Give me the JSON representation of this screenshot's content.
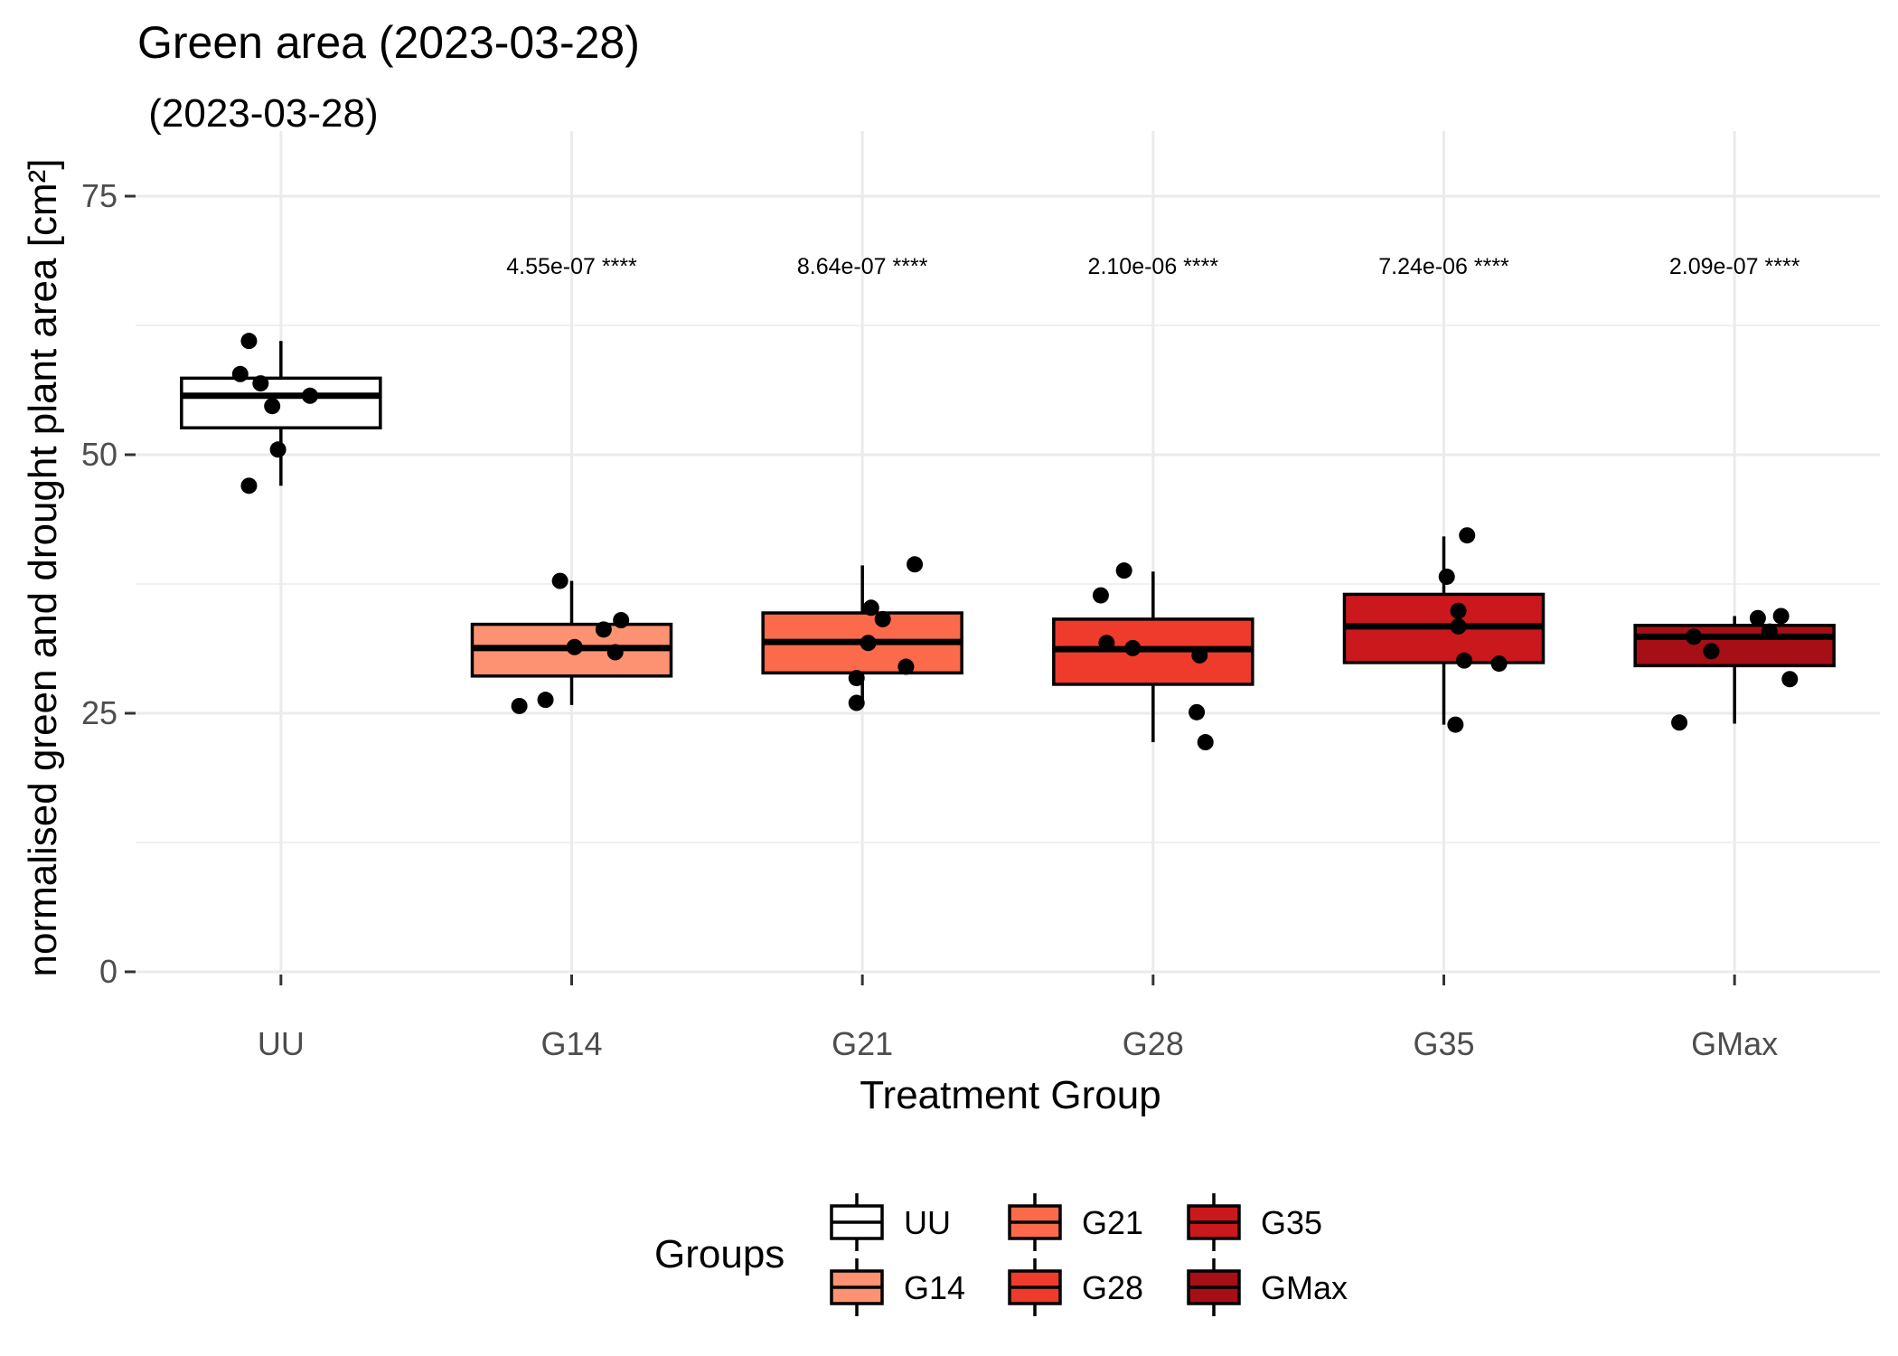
{
  "chart_data": {
    "type": "box",
    "title": "Green area (2023-03-28)",
    "subtitle": " (2023-03-28)",
    "xlabel": "Treatment Group",
    "ylabel": "normalised green and drought plant area [cm²]",
    "ylim": [
      0,
      78
    ],
    "yticks": [
      0,
      25,
      50,
      75
    ],
    "grid": true,
    "categories": [
      "UU",
      "G14",
      "G21",
      "G28",
      "G35",
      "GMax"
    ],
    "boxes": [
      {
        "name": "UU",
        "color": "#ffffff",
        "whisker_low": 47.0,
        "q1": 52.6,
        "median": 55.7,
        "q3": 57.4,
        "whisker_high": 61.0,
        "points": [
          61.0,
          57.8,
          56.9,
          55.7,
          54.7,
          50.5,
          47.0
        ],
        "jitter": [
          -0.11,
          -0.14,
          -0.07,
          0.1,
          -0.03,
          -0.01,
          -0.11
        ],
        "annotation": ""
      },
      {
        "name": "G14",
        "color": "#fc9272",
        "whisker_low": 25.8,
        "q1": 28.6,
        "median": 31.3,
        "q3": 33.6,
        "whisker_high": 37.8,
        "points": [
          37.8,
          34.0,
          33.1,
          31.4,
          30.9,
          26.3,
          25.7
        ],
        "jitter": [
          -0.04,
          0.17,
          0.11,
          0.01,
          0.15,
          -0.09,
          -0.18
        ],
        "annotation": "4.55e-07 ****"
      },
      {
        "name": "G21",
        "color": "#fb6a4a",
        "whisker_low": 26.0,
        "q1": 28.9,
        "median": 31.9,
        "q3": 34.7,
        "whisker_high": 39.3,
        "points": [
          39.4,
          35.2,
          34.1,
          31.8,
          29.5,
          28.4,
          26.0
        ],
        "jitter": [
          0.18,
          0.03,
          0.07,
          0.02,
          0.15,
          -0.02,
          -0.02
        ],
        "annotation": "8.64e-07 ****"
      },
      {
        "name": "G28",
        "color": "#ef3b2c",
        "whisker_low": 22.2,
        "q1": 27.8,
        "median": 31.2,
        "q3": 34.1,
        "whisker_high": 38.7,
        "points": [
          38.8,
          36.4,
          31.8,
          31.3,
          30.6,
          25.1,
          22.2
        ],
        "jitter": [
          -0.1,
          -0.18,
          -0.16,
          -0.07,
          0.16,
          0.15,
          0.18
        ],
        "annotation": "2.10e-06 ****"
      },
      {
        "name": "G35",
        "color": "#cb181d",
        "whisker_low": 23.9,
        "q1": 29.9,
        "median": 33.4,
        "q3": 36.5,
        "whisker_high": 42.1,
        "points": [
          42.2,
          38.2,
          34.9,
          33.4,
          30.1,
          29.8,
          23.9
        ],
        "jitter": [
          0.08,
          0.01,
          0.05,
          0.05,
          0.07,
          0.19,
          0.04
        ],
        "annotation": "7.24e-06 ****"
      },
      {
        "name": "GMax",
        "color": "#a50f15",
        "whisker_low": 24.0,
        "q1": 29.6,
        "median": 32.4,
        "q3": 33.5,
        "whisker_high": 34.4,
        "points": [
          34.4,
          34.2,
          32.9,
          32.4,
          31.0,
          28.3,
          24.1
        ],
        "jitter": [
          0.16,
          0.08,
          0.12,
          -0.14,
          -0.08,
          0.19,
          -0.19
        ],
        "annotation": "2.09e-07 ****"
      }
    ],
    "legend": {
      "title": "Groups",
      "position": "bottom",
      "columns": [
        [
          "UU",
          "G14"
        ],
        [
          "G21",
          "G28"
        ],
        [
          "G35",
          "GMax"
        ]
      ]
    }
  }
}
